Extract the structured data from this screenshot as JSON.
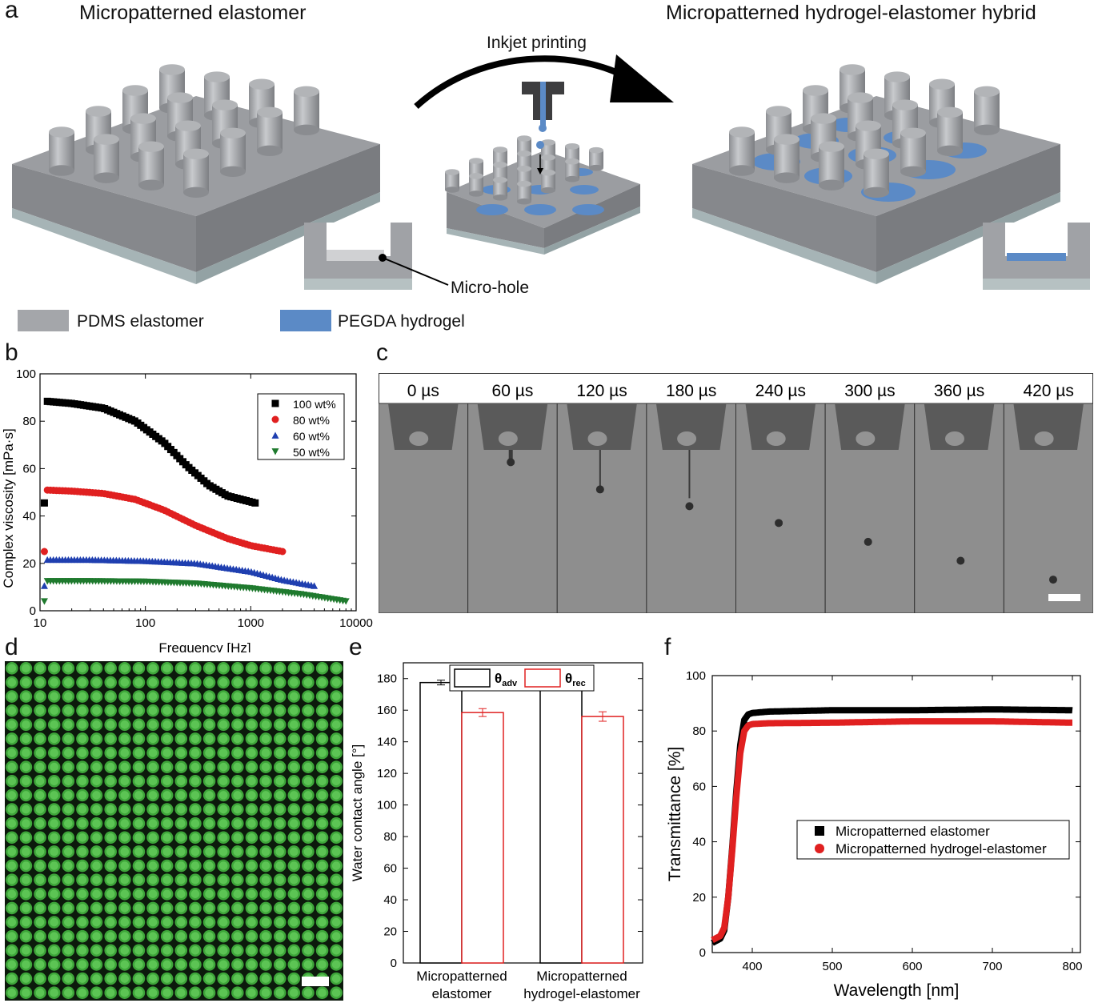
{
  "panel_a": {
    "letter": "a",
    "left_title": "Micropatterned elastomer",
    "right_title": "Micropatterned hydrogel-elastomer hybrid",
    "arrow_label": "Inkjet printing",
    "micro_hole_label": "Micro-hole",
    "legend": [
      {
        "label": "PDMS elastomer",
        "color": "#a4a6aa"
      },
      {
        "label": "PEGDA hydrogel",
        "color": "#5b8ac6"
      }
    ]
  },
  "panel_b": {
    "letter": "b"
  },
  "panel_c": {
    "letter": "c",
    "frames": [
      "0 µs",
      "60 µs",
      "120 µs",
      "180 µs",
      "240 µs",
      "300 µs",
      "360 µs",
      "420 µs"
    ],
    "drop_y_fraction": [
      null,
      0.28,
      0.41,
      0.49,
      0.57,
      0.66,
      0.75,
      0.84
    ]
  },
  "panel_d": {
    "letter": "d"
  },
  "panel_e": {
    "letter": "e"
  },
  "panel_f": {
    "letter": "f"
  },
  "chart_data": [
    {
      "id": "b",
      "type": "scatter",
      "xlabel": "Frequency [Hz]",
      "ylabel": "Complex viscosity [mPa·s]",
      "xscale": "log",
      "xlim": [
        10,
        10000
      ],
      "ylim": [
        0,
        100
      ],
      "xticks": [
        "10",
        "100",
        "1000",
        "10000"
      ],
      "yticks": [
        "0",
        "20",
        "40",
        "60",
        "80",
        "100"
      ],
      "legend_position": "top-right",
      "series": [
        {
          "name": "100 wt%",
          "marker": "square",
          "color": "#000000",
          "x": [
            11,
            20,
            40,
            80,
            150,
            250,
            400,
            600,
            1100
          ],
          "y": [
            88.5,
            87.5,
            85.5,
            80,
            71,
            61,
            53,
            48.5,
            45.5
          ]
        },
        {
          "name": "80 wt%",
          "marker": "circle",
          "color": "#e02020",
          "x": [
            11,
            20,
            40,
            80,
            150,
            300,
            600,
            1000,
            2000
          ],
          "y": [
            51,
            50.5,
            49.5,
            47,
            42.5,
            36,
            30.5,
            27.5,
            25
          ]
        },
        {
          "name": "60 wt%",
          "marker": "triangle-up",
          "color": "#1f3fb0",
          "x": [
            11,
            30,
            100,
            300,
            1000,
            2000,
            4000
          ],
          "y": [
            21.5,
            21.5,
            21,
            20,
            16.5,
            13,
            10.5
          ]
        },
        {
          "name": "50 wt%",
          "marker": "triangle-down",
          "color": "#1f7a2e",
          "x": [
            11,
            30,
            100,
            300,
            1000,
            3000,
            8000
          ],
          "y": [
            12.5,
            12.5,
            12.3,
            11.5,
            9.5,
            7,
            4
          ]
        }
      ]
    },
    {
      "id": "e",
      "type": "bar",
      "ylabel": "Water contact angle [°]",
      "ylim": [
        0,
        190
      ],
      "yticks": [
        "0",
        "20",
        "40",
        "60",
        "80",
        "100",
        "120",
        "140",
        "160",
        "180"
      ],
      "categories": [
        "Micropatterned elastomer",
        "Micropatterned hydrogel-elastomer"
      ],
      "category_lines": [
        [
          "Micropatterned",
          "elastomer"
        ],
        [
          "Micropatterned",
          "hydrogel-elastomer"
        ]
      ],
      "legend_position": "top",
      "series": [
        {
          "name": "θadv",
          "symbol": "θ",
          "sub": "adv",
          "color": "#000000",
          "values": [
            177.5,
            176.5
          ],
          "errors": [
            1.5,
            2
          ]
        },
        {
          "name": "θrec",
          "symbol": "θ",
          "sub": "rec",
          "color": "#e02020",
          "values": [
            158.5,
            156
          ],
          "errors": [
            2.5,
            3
          ]
        }
      ]
    },
    {
      "id": "f",
      "type": "line",
      "xlabel": "Wavelength [nm]",
      "ylabel": "Transmittance [%]",
      "xlim": [
        350,
        810
      ],
      "ylim": [
        0,
        100
      ],
      "xticks": [
        "400",
        "500",
        "600",
        "700",
        "800"
      ],
      "yticks": [
        "0",
        "20",
        "40",
        "60",
        "80",
        "100"
      ],
      "legend_position": "center-right",
      "series": [
        {
          "name": "Micropatterned elastomer",
          "marker": "square",
          "color": "#000000",
          "x": [
            350,
            360,
            365,
            370,
            375,
            380,
            385,
            390,
            395,
            400,
            420,
            500,
            600,
            700,
            800
          ],
          "y": [
            3.5,
            5,
            8,
            20,
            38,
            58,
            75,
            84,
            86,
            86.5,
            87,
            87.5,
            87.5,
            87.8,
            87.5
          ]
        },
        {
          "name": "Micropatterned hydrogel-elastomer",
          "marker": "circle",
          "color": "#e02020",
          "x": [
            350,
            360,
            365,
            370,
            375,
            380,
            385,
            390,
            395,
            400,
            420,
            500,
            600,
            700,
            800
          ],
          "y": [
            4.5,
            6,
            9,
            20,
            37,
            56,
            72,
            80,
            82,
            82.5,
            82.8,
            83,
            83.5,
            83.5,
            83
          ]
        }
      ]
    }
  ]
}
